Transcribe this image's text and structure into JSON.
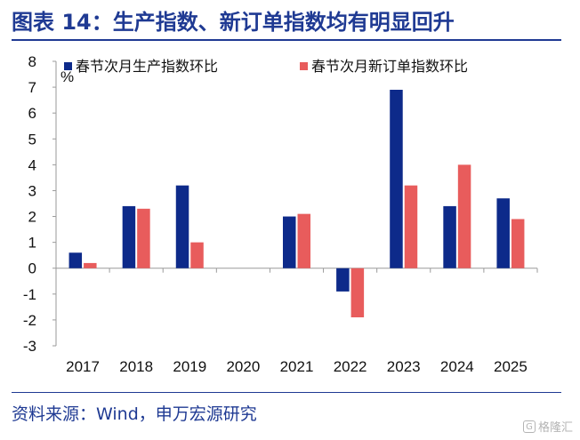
{
  "header": {
    "title": "图表 14：生产指数、新订单指数均有明显回升"
  },
  "footer": {
    "source": "资料来源：Wind，申万宏源研究"
  },
  "watermark": {
    "text": "格隆汇",
    "mark": "G"
  },
  "chart_data": {
    "type": "bar",
    "title": "",
    "xlabel": "",
    "ylabel": "",
    "unit": "%",
    "categories": [
      "2017",
      "2018",
      "2019",
      "2020",
      "2021",
      "2022",
      "2023",
      "2024",
      "2025"
    ],
    "series": [
      {
        "name": "春节次月生产指数环比",
        "color": "#0d2a8a",
        "values": [
          0.6,
          2.4,
          3.2,
          null,
          2.0,
          -0.9,
          6.9,
          2.4,
          2.7
        ]
      },
      {
        "name": "春节次月新订单指数环比",
        "color": "#e85c5c",
        "values": [
          0.2,
          2.3,
          1.0,
          null,
          2.1,
          -1.9,
          3.2,
          4.0,
          1.9
        ]
      }
    ],
    "yticks": [
      "8",
      "7",
      "6",
      "5",
      "4",
      "3",
      "2",
      "1",
      "0",
      "-1",
      "-2",
      "-3"
    ],
    "ylim": [
      -3,
      8
    ],
    "grid": false,
    "legend": "top"
  }
}
